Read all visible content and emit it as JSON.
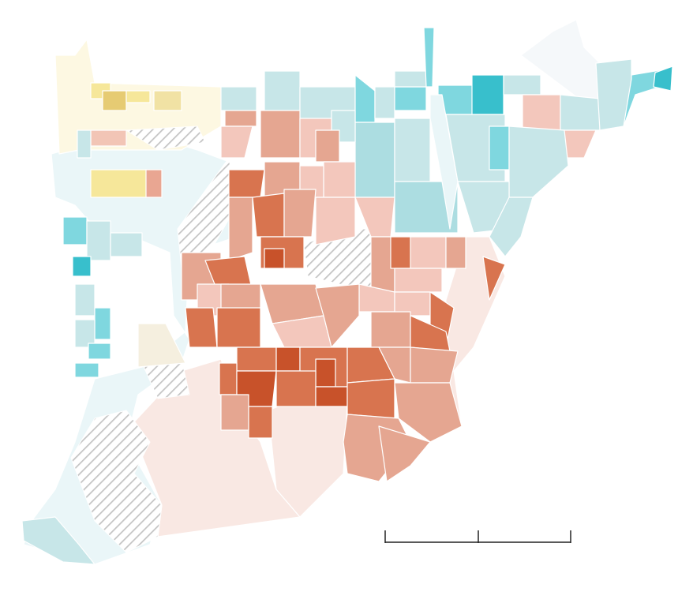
{
  "map": {
    "legend_palette": {
      "red_5": "#c8522a",
      "red_4": "#d8744f",
      "red_3": "#e5a691",
      "red_2": "#f3c7bc",
      "red_1": "#f9e8e3",
      "teal_4": "#38bfcc",
      "teal_3": "#7fd7df",
      "teal_2": "#acdde1",
      "teal_1": "#c7e6e8",
      "teal_0": "#eaf6f8",
      "yellow_3": "#e6cb73",
      "yellow_2": "#f6e79a",
      "yellow_1": "#fdf8e2",
      "no_data": "hatched-gray",
      "background": "#ffffff"
    },
    "scale_bar": {
      "labels": []
    }
  }
}
